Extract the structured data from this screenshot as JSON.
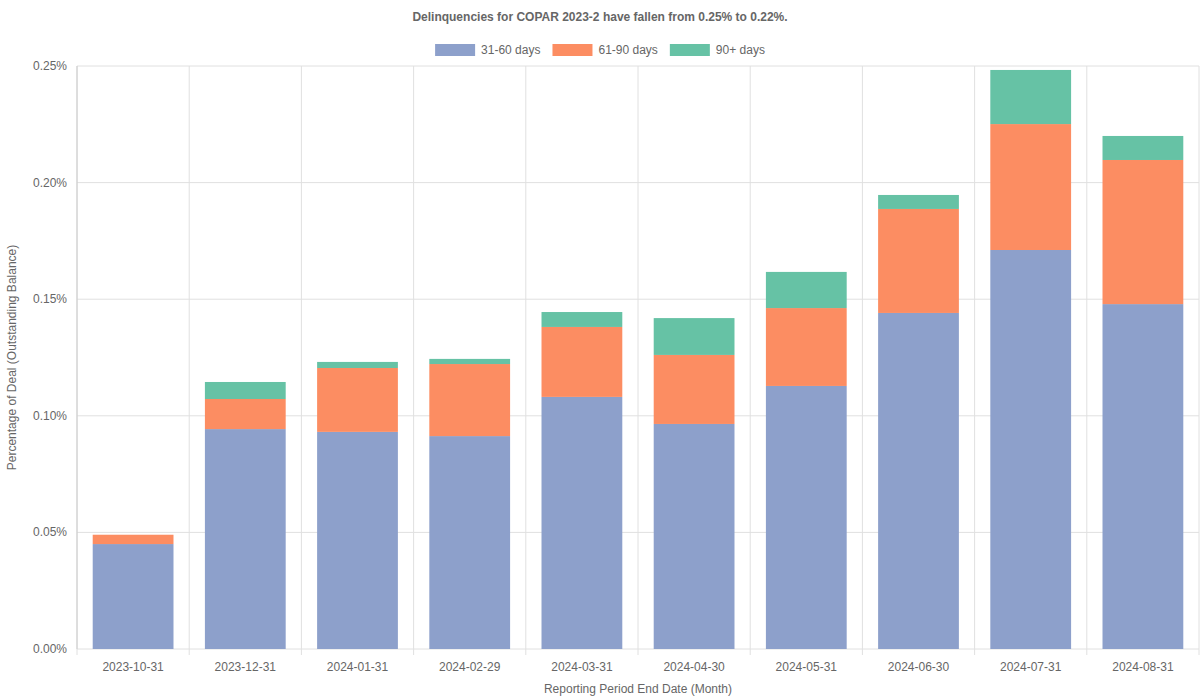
{
  "chart_data": {
    "type": "bar",
    "stacked": true,
    "grid": true,
    "legend": "top",
    "title": "Delinquencies for COPAR 2023-2 have fallen from 0.25% to 0.22%.",
    "x_label": "Reporting Period End Date (Month)",
    "y_label": "Percentage of Deal (Outstanding Balance)",
    "categories": [
      "2023-10-31",
      "2023-12-31",
      "2024-01-31",
      "2024-02-29",
      "2024-03-31",
      "2024-04-30",
      "2024-05-31",
      "2024-06-30",
      "2024-07-31",
      "2024-08-31"
    ],
    "series": [
      {
        "name": "31-60 days",
        "color": "#8da0cb",
        "values": [
          0.045,
          0.0943,
          0.0931,
          0.0913,
          0.1081,
          0.0965,
          0.1128,
          0.1441,
          0.1711,
          0.1479
        ]
      },
      {
        "name": "61-90 days",
        "color": "#fc8d62",
        "values": [
          0.004,
          0.0129,
          0.0274,
          0.0309,
          0.03,
          0.0296,
          0.0334,
          0.0446,
          0.054,
          0.0618
        ]
      },
      {
        "name": "90+ days",
        "color": "#66c2a5",
        "values": [
          0,
          0.0073,
          0.0026,
          0.0022,
          0.0064,
          0.0158,
          0.0155,
          0.006,
          0.0232,
          0.0103
        ]
      }
    ],
    "ylim": [
      0,
      0.25
    ],
    "yticks": [
      {
        "value": 0,
        "label": "0.00%"
      },
      {
        "value": 0.05,
        "label": "0.05%"
      },
      {
        "value": 0.1,
        "label": "0.10%"
      },
      {
        "value": 0.15,
        "label": "0.15%"
      },
      {
        "value": 0.2,
        "label": "0.20%"
      },
      {
        "value": 0.25,
        "label": "0.25%"
      }
    ]
  }
}
